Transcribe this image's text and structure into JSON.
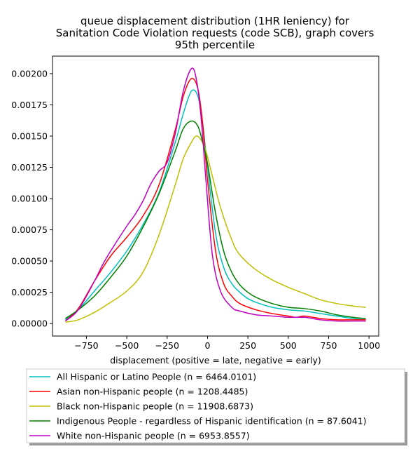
{
  "chart_data": {
    "type": "line",
    "title": [
      "queue displacement distribution (1HR leniency) for",
      "Sanitation Code Violation  requests (code SCB), graph covers",
      "95th percentile"
    ],
    "xlabel": "displacement (positive = late, negative = early)",
    "ylabel": "",
    "xlim": [
      -960,
      1060
    ],
    "ylim": [
      -0.0001,
      0.00214
    ],
    "x_ticks": [
      -750,
      -500,
      -250,
      0,
      250,
      500,
      750,
      1000
    ],
    "x_tick_labels": [
      "−750",
      "−500",
      "−250",
      "0",
      "250",
      "500",
      "750",
      "1000"
    ],
    "y_ticks": [
      0,
      0.00025,
      0.0005,
      0.00075,
      0.001,
      0.00125,
      0.0015,
      0.00175,
      0.002
    ],
    "y_tick_labels": [
      "0.00000",
      "0.00025",
      "0.00050",
      "0.00075",
      "0.00100",
      "0.00125",
      "0.00150",
      "0.00175",
      "0.00200"
    ],
    "grid": false,
    "legend_position": "below",
    "series": [
      {
        "name": "All Hispanic or Latino People (n = 6464.0101)",
        "color": "#00bfbf",
        "x": [
          -880,
          -800,
          -700,
          -600,
          -500,
          -400,
          -300,
          -200,
          -150,
          -100,
          -60,
          -30,
          0,
          50,
          100,
          150,
          200,
          250,
          300,
          400,
          500,
          600,
          700,
          800,
          900,
          980
        ],
        "y": [
          3e-05,
          0.00011,
          0.00026,
          0.00041,
          0.00058,
          0.00079,
          0.00105,
          0.00145,
          0.00168,
          0.00186,
          0.00182,
          0.0016,
          0.00125,
          0.00072,
          0.00045,
          0.00032,
          0.00025,
          0.0002,
          0.00017,
          0.00013,
          0.00011,
          0.0001,
          8e-05,
          6e-05,
          4e-05,
          3e-05
        ]
      },
      {
        "name": "Asian non-Hispanic people (n = 1208.4485)",
        "color": "#ff0000",
        "x": [
          -880,
          -800,
          -700,
          -600,
          -500,
          -400,
          -300,
          -200,
          -150,
          -100,
          -60,
          -30,
          0,
          50,
          100,
          150,
          200,
          300,
          400,
          500,
          550,
          600,
          700,
          800,
          900,
          980
        ],
        "y": [
          2e-05,
          0.00012,
          0.00034,
          0.00054,
          0.00069,
          0.00086,
          0.00111,
          0.00155,
          0.00182,
          0.00196,
          0.00188,
          0.0016,
          0.00115,
          0.00058,
          0.00032,
          0.00022,
          0.00016,
          0.00011,
          8e-05,
          6e-05,
          5e-05,
          6e-05,
          4e-05,
          3e-05,
          3e-05,
          3e-05
        ]
      },
      {
        "name": "Black non-Hispanic people (n = 11908.6873)",
        "color": "#bfbf00",
        "x": [
          -880,
          -800,
          -700,
          -600,
          -500,
          -400,
          -300,
          -200,
          -150,
          -100,
          -70,
          -40,
          -10,
          30,
          80,
          150,
          200,
          300,
          400,
          500,
          600,
          700,
          800,
          900,
          980
        ],
        "y": [
          1e-05,
          3e-05,
          9e-05,
          0.00017,
          0.00026,
          0.00041,
          0.00071,
          0.00111,
          0.00132,
          0.00145,
          0.0015,
          0.00147,
          0.00138,
          0.00118,
          0.00093,
          0.00067,
          0.00055,
          0.00043,
          0.00035,
          0.00029,
          0.00024,
          0.00019,
          0.00016,
          0.00014,
          0.00013
        ]
      },
      {
        "name": "Indigenous People - regardless of Hispanic identification (n = 87.6041)",
        "color": "#008000",
        "x": [
          -880,
          -800,
          -700,
          -600,
          -500,
          -400,
          -300,
          -200,
          -150,
          -100,
          -60,
          -30,
          0,
          50,
          100,
          150,
          200,
          250,
          300,
          400,
          500,
          600,
          700,
          800,
          900,
          980
        ],
        "y": [
          4e-05,
          0.00011,
          0.00022,
          0.00037,
          0.00054,
          0.00077,
          0.00104,
          0.00138,
          0.00156,
          0.00162,
          0.00158,
          0.00145,
          0.00128,
          0.00088,
          0.00058,
          0.00041,
          0.00031,
          0.00025,
          0.00021,
          0.00016,
          0.00013,
          0.00012,
          0.0001,
          7e-05,
          5e-05,
          4e-05
        ]
      },
      {
        "name": "White non-Hispanic people (n = 6953.8557)",
        "color": "#bf00bf",
        "x": [
          -880,
          -800,
          -700,
          -650,
          -600,
          -500,
          -450,
          -400,
          -350,
          -300,
          -250,
          -200,
          -150,
          -100,
          -70,
          -40,
          -10,
          30,
          80,
          150,
          200,
          300,
          400,
          500,
          600,
          650,
          700,
          800,
          900,
          980
        ],
        "y": [
          2e-05,
          0.00011,
          0.00034,
          0.00047,
          0.00058,
          0.00078,
          0.00087,
          0.00098,
          0.00112,
          0.00122,
          0.00129,
          0.00152,
          0.00186,
          0.00204,
          0.00196,
          0.00165,
          0.00115,
          0.00055,
          0.00026,
          0.00013,
          0.0001,
          7e-05,
          6e-05,
          5e-05,
          5e-05,
          4e-05,
          3e-05,
          2e-05,
          2e-05,
          2e-05
        ]
      }
    ]
  }
}
